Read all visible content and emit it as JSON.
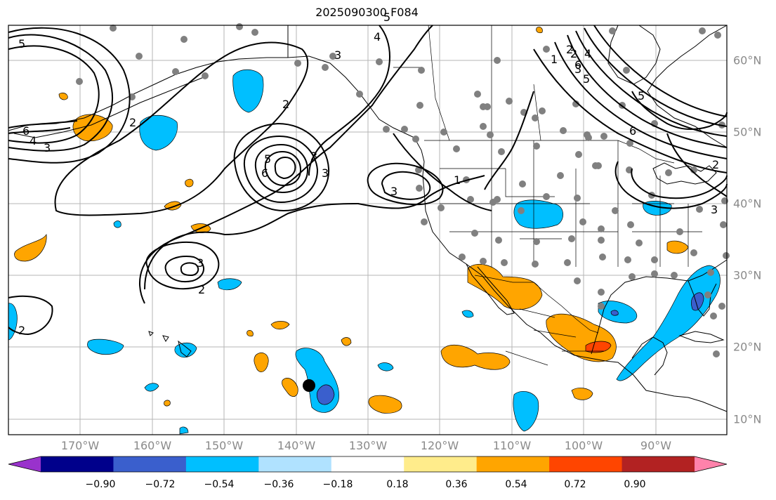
{
  "map": {
    "title": "2025090300 F084",
    "lon_labels": [
      "170°W",
      "160°W",
      "150°W",
      "140°W",
      "130°W",
      "120°W",
      "110°W",
      "100°W",
      "90°W"
    ],
    "lat_labels": [
      "60°N",
      "50°N",
      "40°N",
      "30°N",
      "20°N",
      "10°N"
    ],
    "contour_labels": [
      "5",
      "6",
      "4",
      "3",
      "2",
      "2",
      "3",
      "4",
      "3",
      "3",
      "6",
      "5",
      "2",
      "3",
      "3",
      "2",
      "1",
      "2",
      "3",
      "4",
      "5",
      "6",
      "5",
      "1",
      "2",
      "2",
      "3",
      "6",
      "5"
    ],
    "storm_marker": "hurricane-center",
    "colors": {
      "negative_strong": "#3a5fcd",
      "negative": "#00bfff",
      "positive": "#ffa500",
      "positive_strong": "#ff4500",
      "contour": "#000000",
      "station": "#808080"
    }
  },
  "colorbar": {
    "ticks": [
      "−0.90",
      "−0.72",
      "−0.54",
      "−0.36",
      "−0.18",
      "0.18",
      "0.36",
      "0.54",
      "0.72",
      "0.90"
    ],
    "colors": [
      "#9932cc",
      "#00008b",
      "#3a5fcd",
      "#00bfff",
      "#b0e2ff",
      "#ffffff",
      "#ffec8b",
      "#ffa500",
      "#ff4500",
      "#b22222",
      "#ff82ab"
    ]
  }
}
